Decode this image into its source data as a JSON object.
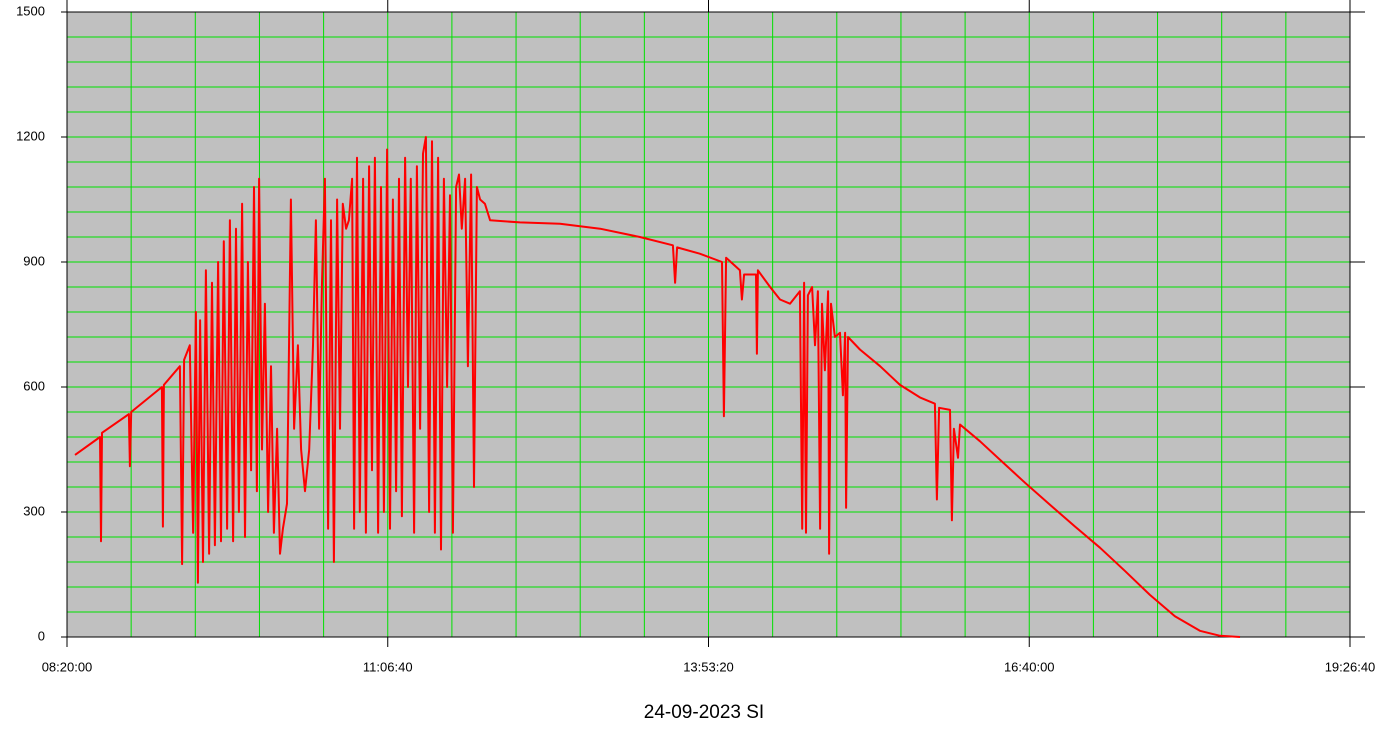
{
  "chart_data": {
    "type": "line",
    "title": "24-09-2023 SI",
    "color": "#ff0000",
    "grid": true,
    "grid_color": "#00e000",
    "plot_background": "#c0c0c0",
    "xlim": [
      30000,
      70000
    ],
    "xticks": [
      {
        "value": 30000,
        "label": "08:20:00"
      },
      {
        "value": 40000,
        "label": "11:06:40"
      },
      {
        "value": 50000,
        "label": "13:53:20"
      },
      {
        "value": 60000,
        "label": "16:40:00"
      },
      {
        "value": 70000,
        "label": "19:26:40"
      }
    ],
    "xgrid_step": 2000,
    "ylim": [
      0,
      1500
    ],
    "yticks": [
      0,
      300,
      600,
      900,
      1200,
      1500
    ],
    "ygrid_step": 60,
    "x": [
      30250,
      31030,
      31060,
      31090,
      31930,
      31960,
      32000,
      32960,
      32990,
      33020,
      33520,
      33590,
      33650,
      33830,
      33930,
      34020,
      34080,
      34150,
      34240,
      34330,
      34430,
      34520,
      34610,
      34710,
      34800,
      34890,
      34990,
      35080,
      35180,
      35270,
      35360,
      35460,
      35550,
      35640,
      35740,
      35830,
      35920,
      35990,
      36080,
      36170,
      36270,
      36360,
      36450,
      36550,
      36640,
      36730,
      36860,
      36980,
      37080,
      37200,
      37300,
      37420,
      37550,
      37670,
      37760,
      37860,
      37950,
      38040,
      38140,
      38230,
      38320,
      38420,
      38510,
      38600,
      38700,
      38790,
      38890,
      38950,
      39040,
      39130,
      39230,
      39320,
      39420,
      39510,
      39600,
      39700,
      39790,
      39880,
      39980,
      40070,
      40160,
      40260,
      40350,
      40440,
      40540,
      40630,
      40720,
      40820,
      40910,
      41010,
      41100,
      41190,
      41290,
      41380,
      41470,
      41570,
      41660,
      41750,
      41850,
      41940,
      42030,
      42130,
      42220,
      42310,
      42410,
      42500,
      42600,
      42690,
      42780,
      42880,
      43030,
      43190,
      44120,
      45370,
      46620,
      47860,
      48890,
      48960,
      49020,
      49730,
      50420,
      50480,
      50550,
      50980,
      51040,
      51110,
      51480,
      51510,
      51540,
      51920,
      52230,
      52540,
      52850,
      52920,
      52980,
      53040,
      53100,
      53230,
      53320,
      53410,
      53480,
      53540,
      53630,
      53730,
      53760,
      53820,
      53940,
      54100,
      54190,
      54260,
      54290,
      54350,
      54720,
      55350,
      55970,
      56590,
      57060,
      57120,
      57190,
      57530,
      57590,
      57650,
      57780,
      57840,
      58460,
      59090,
      59870,
      60650,
      61430,
      62210,
      62990,
      63760,
      64540,
      65320,
      65950,
      66570
    ],
    "values": [
      437,
      480,
      230,
      490,
      535,
      410,
      540,
      600,
      265,
      605,
      650,
      175,
      665,
      700,
      250,
      780,
      130,
      760,
      180,
      880,
      200,
      850,
      220,
      900,
      230,
      950,
      260,
      1000,
      230,
      980,
      300,
      1040,
      240,
      900,
      400,
      1080,
      350,
      1100,
      450,
      800,
      300,
      650,
      250,
      500,
      200,
      260,
      320,
      1050,
      500,
      700,
      450,
      350,
      450,
      700,
      1000,
      500,
      850,
      1100,
      260,
      1000,
      180,
      1050,
      500,
      1040,
      980,
      1000,
      1100,
      260,
      1150,
      300,
      1100,
      250,
      1130,
      400,
      1150,
      250,
      1080,
      300,
      1170,
      260,
      1050,
      350,
      1100,
      290,
      1150,
      600,
      1100,
      250,
      1130,
      500,
      1160,
      1200,
      300,
      1190,
      250,
      1150,
      210,
      1100,
      600,
      1060,
      250,
      1080,
      1110,
      980,
      1100,
      650,
      1110,
      360,
      1080,
      1050,
      1040,
      1000,
      995,
      992,
      980,
      960,
      940,
      850,
      935,
      920,
      900,
      530,
      910,
      880,
      810,
      870,
      870,
      680,
      880,
      840,
      810,
      800,
      830,
      260,
      850,
      250,
      820,
      840,
      700,
      830,
      260,
      800,
      640,
      830,
      200,
      800,
      720,
      730,
      580,
      730,
      310,
      720,
      690,
      650,
      605,
      575,
      560,
      330,
      550,
      545,
      280,
      500,
      430,
      510,
      470,
      425,
      370,
      317,
      265,
      214,
      158,
      101,
      50,
      15,
      3,
      0
    ]
  }
}
